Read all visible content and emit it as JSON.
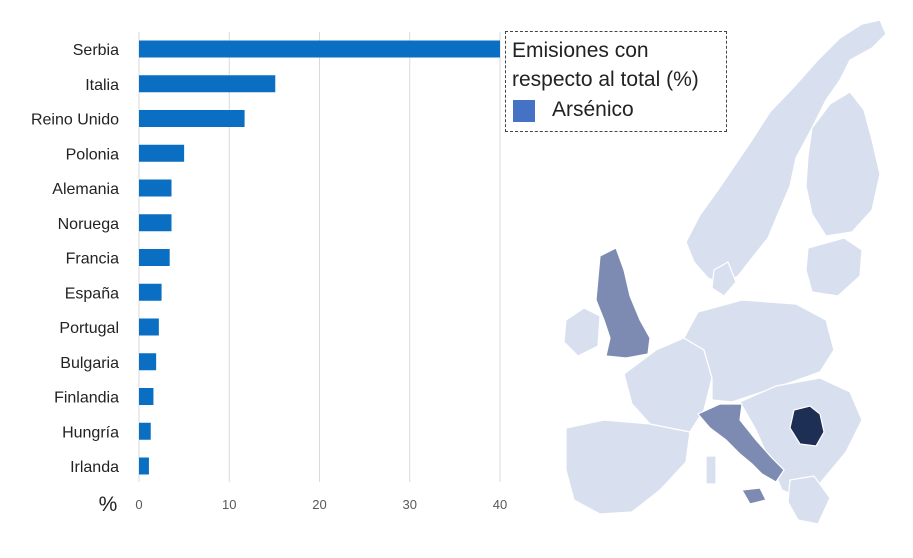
{
  "chart_data": {
    "type": "bar",
    "orientation": "horizontal",
    "categories": [
      "Serbia",
      "Italia",
      "Reino Unido",
      "Polonia",
      "Alemania",
      "Noruega",
      "Francia",
      "España",
      "Portugal",
      "Bulgaria",
      "Finlandia",
      "Hungría",
      "Irlanda"
    ],
    "series": [
      {
        "name": "Arsénico",
        "values": [
          40,
          15.1,
          11.7,
          5.0,
          3.6,
          3.6,
          3.4,
          2.5,
          2.2,
          1.9,
          1.6,
          1.3,
          1.1
        ]
      }
    ],
    "xticks": [
      "0",
      "10",
      "20",
      "30",
      "40"
    ],
    "xlim": [
      0,
      40
    ],
    "xlabel": "%",
    "grid": true,
    "bar_color": "#0a6fc2",
    "legend": {
      "title": "Emisiones con respecto al total (%)",
      "item": "Arsénico",
      "swatch_color": "#4472c4",
      "placement": "top-right"
    }
  },
  "map": {
    "description_colors": {
      "base": "#d8e0f0",
      "medium": "#7d8bb3",
      "dark": "#1e2f55"
    },
    "highlighted": [
      "Serbia",
      "Italia",
      "Reino Unido"
    ]
  }
}
